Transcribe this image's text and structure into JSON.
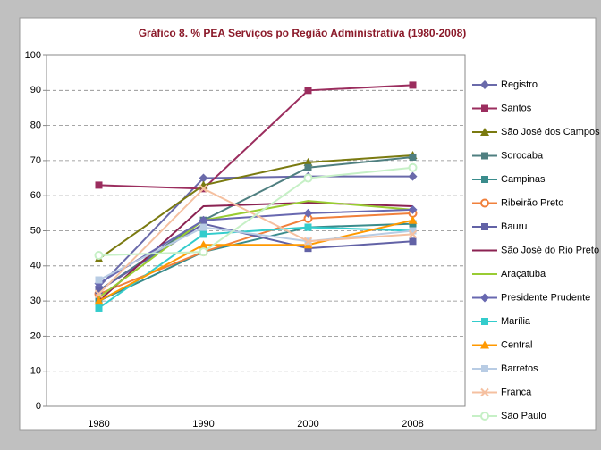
{
  "chart_data": {
    "type": "line",
    "title": "Gráfico 8. % PEA Serviços po  Região Administrativa (1980-2008)",
    "categories": [
      "1980",
      "1990",
      "2000",
      "2008"
    ],
    "ylim": [
      0,
      100
    ],
    "yticks": [
      0,
      10,
      20,
      30,
      40,
      50,
      60,
      70,
      80,
      90,
      100
    ],
    "grid": true,
    "legend": "right",
    "series": [
      {
        "name": "Registro",
        "color": "#6a6aaa",
        "marker": "diamond",
        "values": [
          34,
          65,
          65.5,
          65.5
        ]
      },
      {
        "name": "Santos",
        "color": "#9b2d5e",
        "marker": "square",
        "values": [
          63,
          62,
          90,
          91.5
        ]
      },
      {
        "name": "São José dos Campos",
        "color": "#7a7a10",
        "marker": "triangle",
        "values": [
          42,
          63,
          69.5,
          71.5
        ]
      },
      {
        "name": "Sorocaba",
        "color": "#4f7f80",
        "marker": "square",
        "values": [
          33,
          53,
          68,
          71
        ]
      },
      {
        "name": "Campinas",
        "color": "#3a8c8c",
        "marker": "square",
        "values": [
          30,
          44,
          51,
          52
        ]
      },
      {
        "name": "Ribeirão Preto",
        "color": "#f0803c",
        "marker": "circle",
        "values": [
          32,
          44,
          53.5,
          55
        ]
      },
      {
        "name": "Bauru",
        "color": "#6262a6",
        "marker": "square",
        "values": [
          33,
          52,
          45,
          47
        ]
      },
      {
        "name": "São José do Rio Preto",
        "color": "#8b2252",
        "marker": "none",
        "values": [
          30,
          57,
          58,
          57
        ]
      },
      {
        "name": "Araçatuba",
        "color": "#99cc33",
        "marker": "none",
        "values": [
          31,
          53,
          58.5,
          56
        ]
      },
      {
        "name": "Presidente Prudente",
        "color": "#6868b0",
        "marker": "diamond",
        "values": [
          35,
          53,
          55,
          56
        ]
      },
      {
        "name": "Marília",
        "color": "#33cccc",
        "marker": "square",
        "values": [
          28,
          49,
          51,
          50
        ]
      },
      {
        "name": "Central",
        "color": "#ff9900",
        "marker": "triangle",
        "values": [
          30,
          46,
          46,
          53
        ]
      },
      {
        "name": "Barretos",
        "color": "#b8cce4",
        "marker": "square",
        "values": [
          36,
          51,
          47,
          50
        ]
      },
      {
        "name": "Franca",
        "color": "#f5c0a0",
        "marker": "x",
        "values": [
          32,
          62,
          47,
          49
        ]
      },
      {
        "name": "São Paulo",
        "color": "#c6f0c6",
        "marker": "circle",
        "values": [
          43,
          44,
          65,
          68
        ]
      }
    ]
  }
}
